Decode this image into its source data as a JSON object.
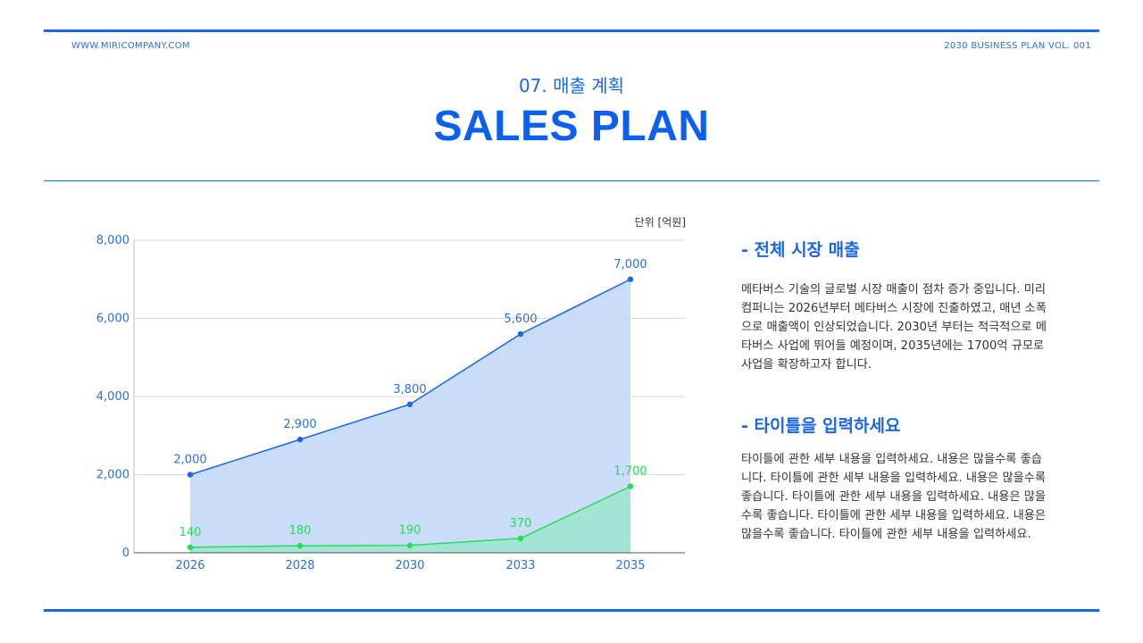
{
  "header": {
    "website": "WWW.MIRICOMPANY.COM",
    "plan_label": "2030 BUSINESS PLAN VOL. 001"
  },
  "subtitle": "07. 매출 계획",
  "title": "SALES PLAN",
  "colors": {
    "accent": "#1a66e6",
    "title": "#0d5ff0",
    "series_total_line": "#1a66e6",
    "series_total_fill": "#c6daf8",
    "series_company_line": "#22dd55",
    "series_company_fill": "#9fe6cf"
  },
  "chart_data": {
    "type": "area",
    "unit_label": "단위 [억원]",
    "categories": [
      "2026",
      "2028",
      "2030",
      "2033",
      "2035"
    ],
    "series": [
      {
        "values": [
          2000,
          2900,
          3800,
          5600,
          7000
        ],
        "data_labels": [
          "2,000",
          "2,900",
          "3,800",
          "5,600",
          "7,000"
        ]
      },
      {
        "values": [
          140,
          180,
          190,
          370,
          1700
        ],
        "data_labels": [
          "140",
          "180",
          "190",
          "370",
          "1,700"
        ]
      }
    ],
    "ylim": [
      0,
      8000
    ],
    "yticks": [
      0,
      2000,
      4000,
      6000,
      8000
    ],
    "ytick_labels": [
      "0",
      "2,000",
      "4,000",
      "6,000",
      "8,000"
    ],
    "grid": true
  },
  "sections": [
    {
      "heading": "- 전체 시장 매출",
      "body": "메타버스 기술의 글로벌 시장 매출이 점차 증가 중입니다. 미리컴퍼니는 2026년부터 메타버스 시장에 진출하였고, 매년 소폭으로 매출액이 인상되었습니다. 2030년 부터는 적극적으로 메타버스 사업에 뛰어들 예정이며, 2035년에는 1700억 규모로 사업을 확장하고자 합니다."
    },
    {
      "heading": "- 타이틀을 입력하세요",
      "body": "타이틀에 관한 세부 내용을 입력하세요. 내용은 많을수록 좋습니다. 타이틀에 관한 세부 내용을 입력하세요. 내용은 많을수록 좋습니다. 타이틀에 관한 세부 내용을 입력하세요. 내용은 많을수록 좋습니다. 타이틀에 관한 세부 내용을 입력하세요. 내용은 많을수록 좋습니다. 타이틀에 관한 세부 내용을 입력하세요."
    }
  ]
}
